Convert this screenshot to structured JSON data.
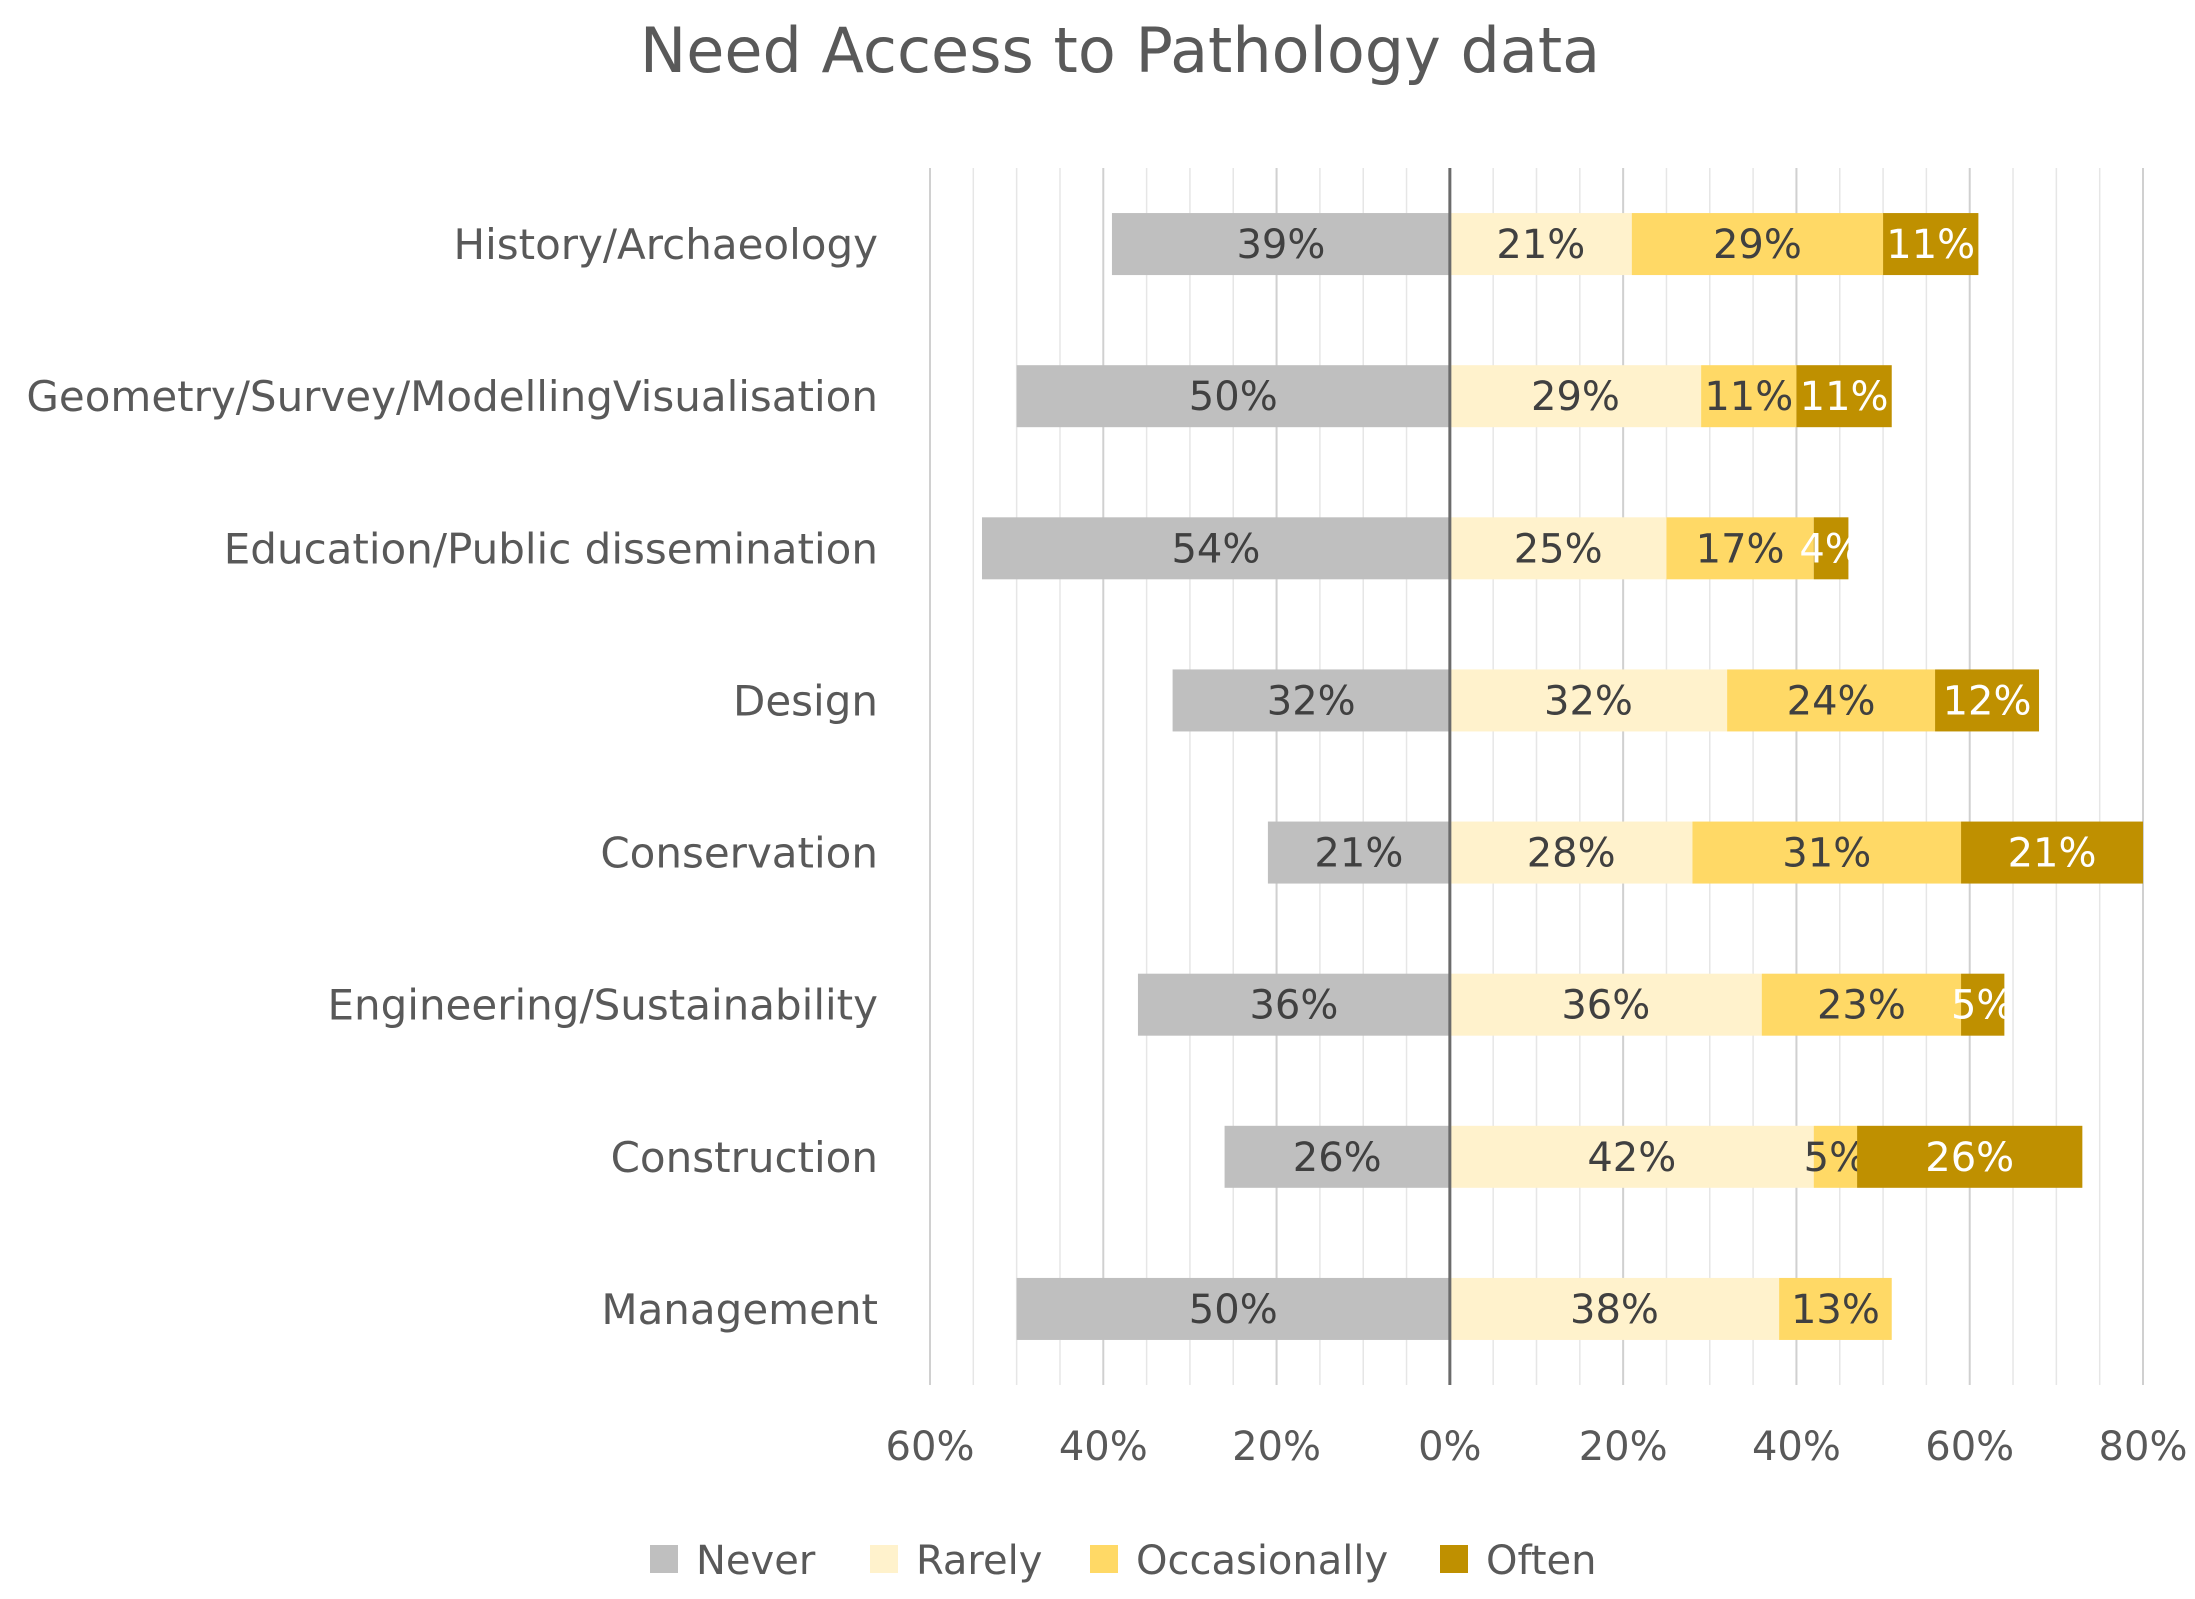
{
  "chart_data": {
    "type": "bar",
    "orientation": "horizontal-diverging-stacked",
    "title": "Need Access to Pathology data",
    "categories": [
      "History/Archaeology",
      "Geometry/Survey/ModellingVisualisation",
      "Education/Public dissemination",
      "Design",
      "Conservation",
      "Engineering/Sustainability",
      "Construction",
      "Management"
    ],
    "series": [
      {
        "name": "Never",
        "color": "#bfbfbf",
        "label_color": "#404040",
        "side": "left",
        "values": [
          39,
          50,
          54,
          32,
          21,
          36,
          26,
          50
        ]
      },
      {
        "name": "Rarely",
        "color": "#fff2cc",
        "label_color": "#404040",
        "side": "right",
        "values": [
          21,
          29,
          25,
          32,
          28,
          36,
          42,
          38
        ]
      },
      {
        "name": "Occasionally",
        "color": "#ffd966",
        "label_color": "#404040",
        "side": "right",
        "values": [
          29,
          11,
          17,
          24,
          31,
          23,
          5,
          13
        ]
      },
      {
        "name": "Often",
        "color": "#bf9000",
        "label_color": "#ffffff",
        "side": "right",
        "values": [
          11,
          11,
          4,
          12,
          21,
          5,
          26,
          0
        ]
      }
    ],
    "data_labels": [
      [
        "39%",
        "21%",
        "29%",
        "11%"
      ],
      [
        "50%",
        "29%",
        "11%",
        "11%"
      ],
      [
        "54%",
        "25%",
        "17%",
        "4%"
      ],
      [
        "32%",
        "32%",
        "24%",
        "12%"
      ],
      [
        "21%",
        "28%",
        "31%",
        "21%"
      ],
      [
        "36%",
        "36%",
        "23%",
        "5%"
      ],
      [
        "26%",
        "42%",
        "5%",
        "26%"
      ],
      [
        "50%",
        "38%",
        "13%",
        ""
      ]
    ],
    "x_ticks": [
      -60,
      -40,
      -20,
      0,
      20,
      40,
      60,
      80
    ],
    "x_tick_labels": [
      "60%",
      "40%",
      "20%",
      "0%",
      "20%",
      "40%",
      "60%",
      "80%"
    ],
    "xlim": [
      -60,
      80
    ],
    "gridlines": "vertical, minor every 5%",
    "legend_position": "bottom"
  }
}
